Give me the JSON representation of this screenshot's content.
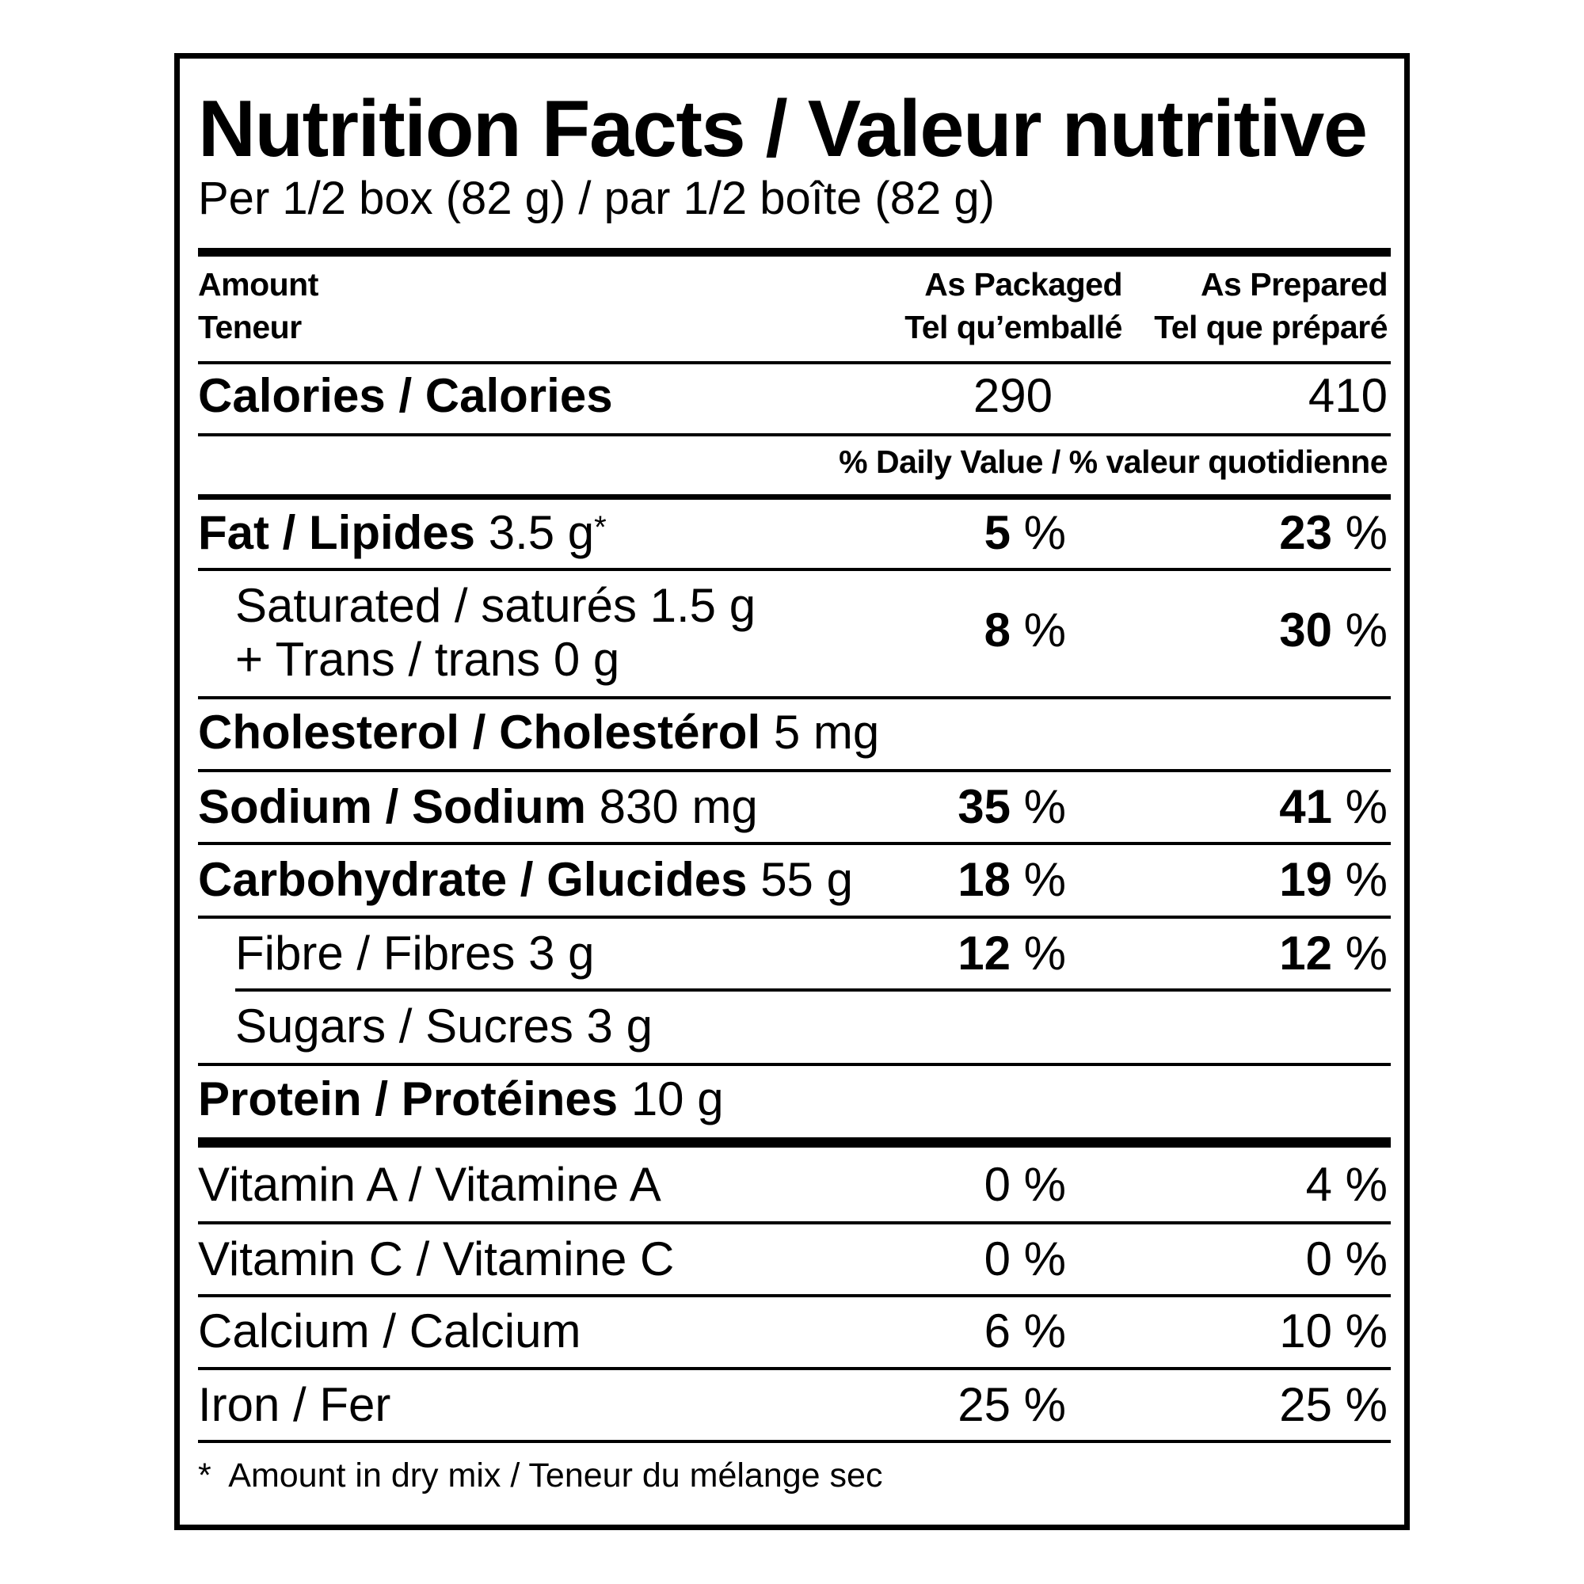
{
  "title": "Nutrition Facts / Valeur nutritive",
  "serving": "Per 1/2 box (82 g) / par 1/2 boîte (82 g)",
  "header": {
    "amount_en": "Amount",
    "amount_fr": "Teneur",
    "packaged_en": "As Packaged",
    "packaged_fr": "Tel qu’emballé",
    "prepared_en": "As Prepared",
    "prepared_fr": "Tel que préparé"
  },
  "calories": {
    "label": "Calories / Calories",
    "packaged": "290",
    "prepared": "410"
  },
  "daily_value_heading": "% Daily Value / % valeur quotidienne",
  "pct": "%",
  "nutrients": {
    "fat": {
      "label": "Fat / Lipides",
      "amount": "3.5 g",
      "marker": "*",
      "packaged": "5",
      "prepared": "23"
    },
    "saturated": {
      "label": "Saturated / saturés 1.5 g",
      "label2": "+ Trans / trans 0 g",
      "packaged": "8",
      "prepared": "30"
    },
    "cholesterol": {
      "label": "Cholesterol / Cholestérol",
      "amount": "5 mg"
    },
    "sodium": {
      "label": "Sodium / Sodium",
      "amount": "830 mg",
      "packaged": "35",
      "prepared": "41"
    },
    "carbohydrate": {
      "label": "Carbohydrate / Glucides",
      "amount": "55 g",
      "packaged": "18",
      "prepared": "19"
    },
    "fibre": {
      "label": "Fibre / Fibres 3 g",
      "packaged": "12",
      "prepared": "12"
    },
    "sugars": {
      "label": "Sugars / Sucres 3 g"
    },
    "protein": {
      "label": "Protein / Protéines",
      "amount": "10 g"
    }
  },
  "vitamins": {
    "vitamin_a": {
      "label": "Vitamin A / Vitamine A",
      "packaged": "0",
      "prepared": "4"
    },
    "vitamin_c": {
      "label": "Vitamin C / Vitamine C",
      "packaged": "0",
      "prepared": "0"
    },
    "calcium": {
      "label": "Calcium / Calcium",
      "packaged": "6",
      "prepared": "10"
    },
    "iron": {
      "label": "Iron / Fer",
      "packaged": "25",
      "prepared": "25"
    }
  },
  "footnote": {
    "marker": "*",
    "text": "Amount in dry mix / Teneur du mélange sec"
  }
}
